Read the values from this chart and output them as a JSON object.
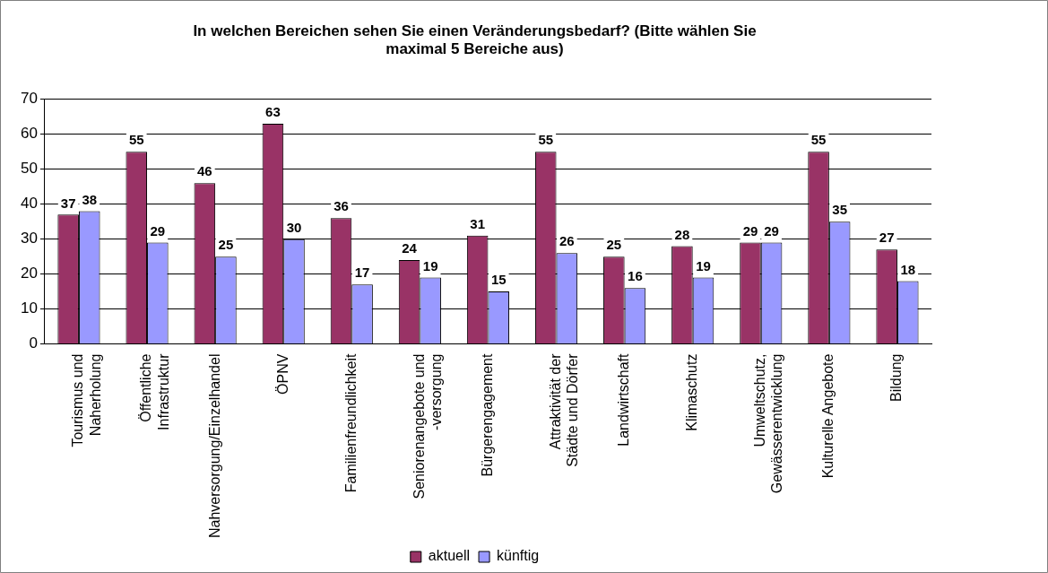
{
  "chart_data": {
    "type": "bar",
    "title": "In welchen Bereichen sehen Sie einen Veränderungsbedarf? (Bitte wählen Sie maximal 5 Bereiche aus)",
    "categories": [
      "Tourismus und Naherholung",
      "Öffentliche Infrastruktur",
      "Nahversorgung/Einzelhandel",
      "ÖPNV",
      "Familienfreundlichkeit",
      "Seniorenangebote und -versorgung",
      "Bürgerengagement",
      "Attraktivität der Städte und Dörfer",
      "Landwirtschaft",
      "Klimaschutz",
      "Umweltschutz, Gewässerentwicklung",
      "Kulturelle Angebote",
      "Bildung"
    ],
    "series": [
      {
        "name": "aktuell",
        "color": "#993366",
        "values": [
          37,
          55,
          46,
          63,
          36,
          24,
          31,
          55,
          25,
          28,
          29,
          55,
          27
        ]
      },
      {
        "name": "künftig",
        "color": "#9999ff",
        "values": [
          38,
          29,
          25,
          30,
          17,
          19,
          15,
          26,
          16,
          19,
          29,
          35,
          18
        ]
      }
    ],
    "ylim": [
      0,
      70
    ],
    "yticks": [
      0,
      10,
      20,
      30,
      40,
      50,
      60,
      70
    ],
    "grid": "y",
    "legend": "bottom",
    "data_labels": true
  }
}
